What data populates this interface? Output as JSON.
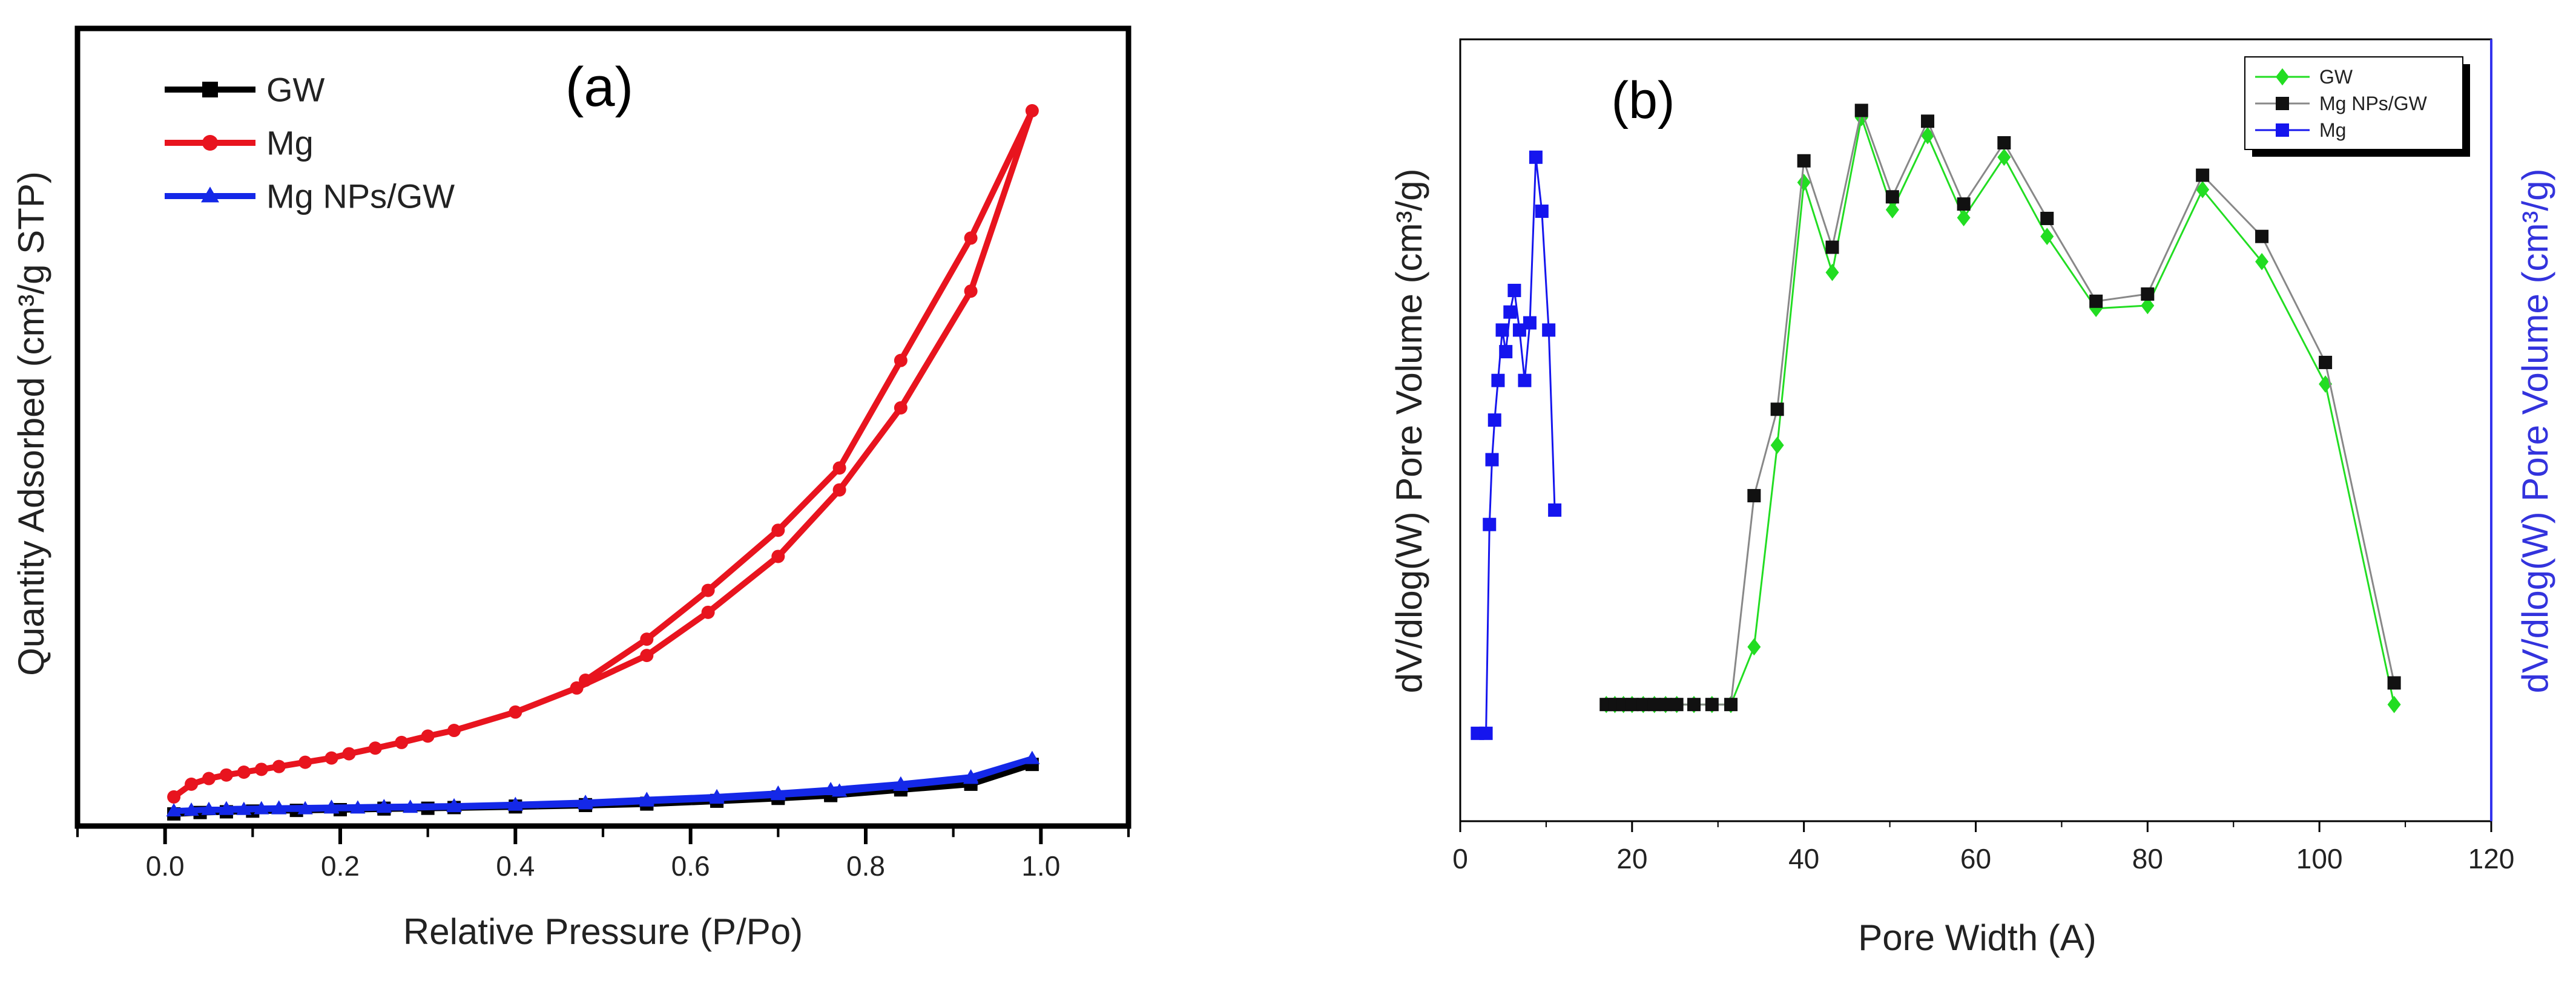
{
  "chart_data": [
    {
      "type": "line",
      "panel_label": "(a)",
      "title": "",
      "xlabel": "Relative Pressure (P/Po)",
      "ylabel": "Quantity Adsorbed (cm³/g STP)",
      "xlim": [
        -0.1,
        1.1
      ],
      "ylim": [
        0,
        100
      ],
      "xticks": [
        0.0,
        0.2,
        0.4,
        0.6,
        0.8,
        1.0
      ],
      "xtick_labels": [
        "0.0",
        "0.2",
        "0.4",
        "0.6",
        "0.8",
        "1.0"
      ],
      "grid": false,
      "legend_position": "top-left",
      "series": [
        {
          "name": "GW",
          "color": "#000000",
          "marker": "square",
          "x": [
            0.01,
            0.04,
            0.07,
            0.1,
            0.15,
            0.2,
            0.25,
            0.3,
            0.4,
            0.48,
            0.55,
            0.63,
            0.7,
            0.76,
            0.84,
            0.92,
            0.99,
            0.92,
            0.84,
            0.76,
            0.7,
            0.63,
            0.55,
            0.48,
            0.4,
            0.33,
            0.25
          ],
          "y": [
            0.6,
            0.8,
            0.9,
            1.0,
            1.1,
            1.2,
            1.3,
            1.4,
            1.6,
            1.8,
            2.0,
            2.4,
            2.8,
            3.2,
            4.0,
            4.8,
            7.6,
            5.0,
            4.2,
            3.4,
            3.0,
            2.5,
            2.1,
            1.9,
            1.7,
            1.5,
            1.4
          ]
        },
        {
          "name": "Mg",
          "color": "#e8141e",
          "marker": "circle",
          "x": [
            0.01,
            0.03,
            0.05,
            0.07,
            0.09,
            0.11,
            0.13,
            0.16,
            0.19,
            0.21,
            0.24,
            0.27,
            0.3,
            0.33,
            0.4,
            0.47,
            0.55,
            0.62,
            0.7,
            0.77,
            0.84,
            0.92,
            0.99,
            0.92,
            0.84,
            0.77,
            0.7,
            0.62,
            0.55,
            0.48
          ],
          "y": [
            3.0,
            4.8,
            5.6,
            6.1,
            6.5,
            6.9,
            7.3,
            7.9,
            8.5,
            9.1,
            9.9,
            10.7,
            11.6,
            12.4,
            15.0,
            18.4,
            23.0,
            29.1,
            37.0,
            46.4,
            58.0,
            74.5,
            100.0,
            82.0,
            64.7,
            49.5,
            40.7,
            32.2,
            25.3,
            19.5
          ]
        },
        {
          "name": "Mg NPs/GW",
          "color": "#1428e8",
          "marker": "triangle",
          "x": [
            0.01,
            0.03,
            0.05,
            0.07,
            0.09,
            0.11,
            0.13,
            0.16,
            0.19,
            0.22,
            0.25,
            0.28,
            0.33,
            0.4,
            0.48,
            0.55,
            0.63,
            0.7,
            0.77,
            0.84,
            0.92,
            0.99,
            0.92,
            0.84,
            0.76,
            0.7,
            0.63,
            0.55,
            0.48,
            0.4,
            0.33,
            0.25,
            0.19,
            0.13,
            0.07
          ],
          "y": [
            1.0,
            1.1,
            1.2,
            1.2,
            1.2,
            1.3,
            1.3,
            1.3,
            1.4,
            1.4,
            1.5,
            1.5,
            1.6,
            1.8,
            2.0,
            2.4,
            2.8,
            3.3,
            3.8,
            4.6,
            5.6,
            8.4,
            5.8,
            4.8,
            4.0,
            3.5,
            3.0,
            2.6,
            2.2,
            1.9,
            1.7,
            1.6,
            1.5,
            1.4,
            1.3
          ]
        }
      ]
    },
    {
      "type": "line",
      "panel_label": "(b)",
      "title": "",
      "xlabel": "Pore Width (A)",
      "ylabel": "dV/dlog(W) Pore Volume (cm³/g)",
      "ylabel_right": "dV/dlog(W) Pore Volume (cm³/g)",
      "xlim": [
        0,
        120
      ],
      "ylim": [
        0,
        100
      ],
      "xticks": [
        0,
        20,
        40,
        60,
        80,
        100,
        120
      ],
      "xtick_labels": [
        "0",
        "20",
        "40",
        "60",
        "80",
        "100",
        "120"
      ],
      "grid": false,
      "legend_position": "top-right",
      "series": [
        {
          "name": "GW",
          "color": "#22dd22",
          "marker": "diamond",
          "x": [
            17,
            18,
            19,
            20,
            21.3,
            22.6,
            23.9,
            25.2,
            27.2,
            29.3,
            31.5,
            34.2,
            36.9,
            40,
            43.3,
            46.7,
            50.3,
            54.4,
            58.6,
            63.3,
            68.3,
            74,
            80,
            86.4,
            93.3,
            100.7,
            108.7
          ],
          "y": [
            12.0,
            12.0,
            12.0,
            12.0,
            12.0,
            12.0,
            12.0,
            12.0,
            12.0,
            12.0,
            12.0,
            20.0,
            48.0,
            84.5,
            72.0,
            93.5,
            80.7,
            91.0,
            79.6,
            88.0,
            77.0,
            67.0,
            67.4,
            83.5,
            73.5,
            56.5,
            12.0
          ]
        },
        {
          "name": "Mg NPs/GW",
          "color": "#111111",
          "line_color": "#888888",
          "marker": "square",
          "x": [
            17,
            18,
            19,
            20,
            21.3,
            22.6,
            23.9,
            25.2,
            27.2,
            29.3,
            31.5,
            34.2,
            36.9,
            40,
            43.3,
            46.7,
            50.3,
            54.4,
            58.6,
            63.3,
            68.3,
            74,
            80,
            86.4,
            93.3,
            100.7,
            108.7
          ],
          "y": [
            12.0,
            12.0,
            12.0,
            12.0,
            12.0,
            12.0,
            12.0,
            12.0,
            12.0,
            12.0,
            12.0,
            41.0,
            53.0,
            87.5,
            75.5,
            94.5,
            82.5,
            93.0,
            81.5,
            90.0,
            79.5,
            68.0,
            69.0,
            85.5,
            77.0,
            59.5,
            15.0
          ]
        },
        {
          "name": "Mg",
          "color": "#1515ee",
          "marker": "square",
          "x": [
            2,
            3,
            3.4,
            3.7,
            4.0,
            4.4,
            4.9,
            5.3,
            5.8,
            6.3,
            6.9,
            7.5,
            8.1,
            8.8,
            9.5,
            10.3,
            11
          ],
          "y": [
            8.0,
            8.0,
            37.0,
            46.0,
            51.5,
            57.0,
            64.0,
            61.0,
            66.5,
            69.5,
            64.0,
            57.0,
            65.0,
            88.0,
            80.5,
            64.0,
            39.0
          ]
        }
      ]
    }
  ]
}
